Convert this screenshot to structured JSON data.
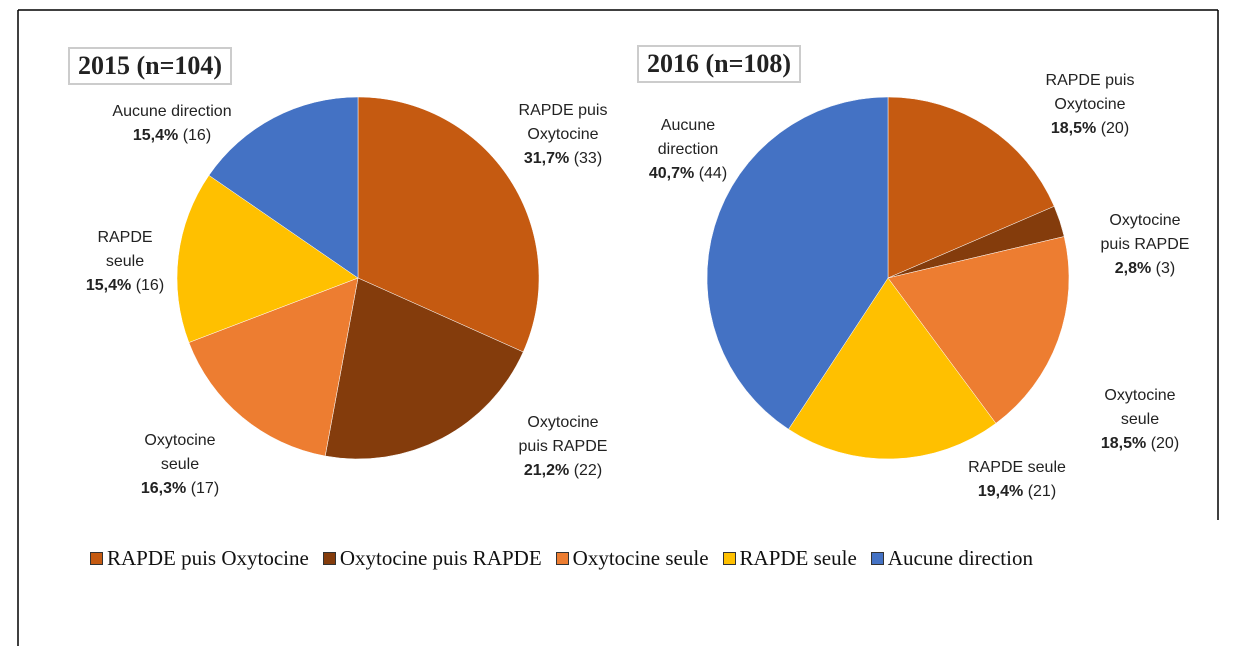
{
  "chart_data": [
    {
      "type": "pie",
      "title": "2015 (n=104)",
      "categories": [
        "RAPDE puis Oxytocine",
        "Oxytocine puis RAPDE",
        "Oxytocine seule",
        "RAPDE seule",
        "Aucune direction"
      ],
      "values": [
        31.7,
        21.2,
        16.3,
        15.4,
        15.4
      ],
      "value_labels": [
        "31,7%",
        "21,2%",
        "16,3%",
        "15,4%",
        "15,4%"
      ],
      "counts": [
        33,
        22,
        17,
        16,
        16
      ],
      "count_labels": [
        "(33)",
        "(22)",
        "(17)",
        "(16)",
        "(16)"
      ],
      "colors": [
        "#c55a11",
        "#843c0c",
        "#ed7d31",
        "#ffc000",
        "#4472c4"
      ]
    },
    {
      "type": "pie",
      "title": "2016 (n=108)",
      "categories": [
        "RAPDE puis Oxytocine",
        "Oxytocine puis RAPDE",
        "Oxytocine seule",
        "RAPDE seule",
        "Aucune direction"
      ],
      "values": [
        18.5,
        2.8,
        18.5,
        19.4,
        40.7
      ],
      "value_labels": [
        "18,5%",
        "2,8%",
        "18,5%",
        "19,4%",
        "40,7%"
      ],
      "counts": [
        20,
        3,
        20,
        21,
        44
      ],
      "count_labels": [
        "(20)",
        "(3)",
        "(20)",
        "(21)",
        "(44)"
      ],
      "colors": [
        "#c55a11",
        "#843c0c",
        "#ed7d31",
        "#ffc000",
        "#4472c4"
      ]
    }
  ]
}
